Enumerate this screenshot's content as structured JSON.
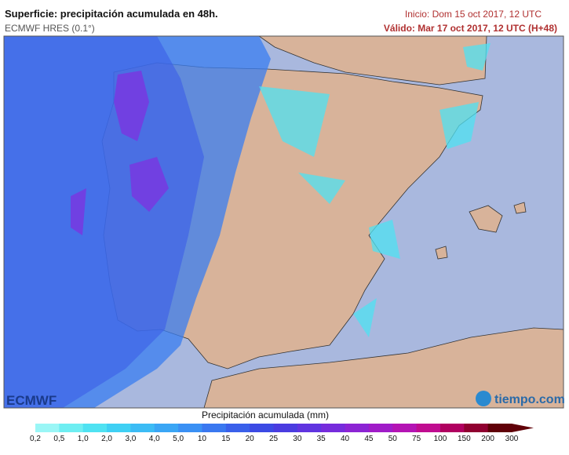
{
  "header": {
    "title": "Superficie: precipitación acumulada en 48h.",
    "model": "ECMWF HRES (0.1°)",
    "init": "Inicio: Dom 15 oct 2017, 12 UTC",
    "valid": "Válido: Mar 17 oct 2017, 12 UTC (H+48)"
  },
  "logos": {
    "left": "ECMWF",
    "right": "tiempo.com"
  },
  "legend": {
    "title": "Precipitación acumulada (mm)",
    "ticks": [
      "0,2",
      "0,5",
      "1,0",
      "2,0",
      "3,0",
      "4,0",
      "5,0",
      "10",
      "15",
      "20",
      "25",
      "30",
      "35",
      "40",
      "45",
      "50",
      "75",
      "100",
      "150",
      "200",
      "300"
    ],
    "colors": [
      "#9af6f6",
      "#6eeef2",
      "#4fe2f2",
      "#3fd0f4",
      "#3cbcf5",
      "#3aa6f5",
      "#3a90f4",
      "#3a78f0",
      "#3a60ea",
      "#3c4ae4",
      "#4a3ce0",
      "#6034e0",
      "#762cdc",
      "#8c24d4",
      "#a01cc8",
      "#b414b4",
      "#c00c90",
      "#b00060",
      "#900030",
      "#600008"
    ]
  }
}
